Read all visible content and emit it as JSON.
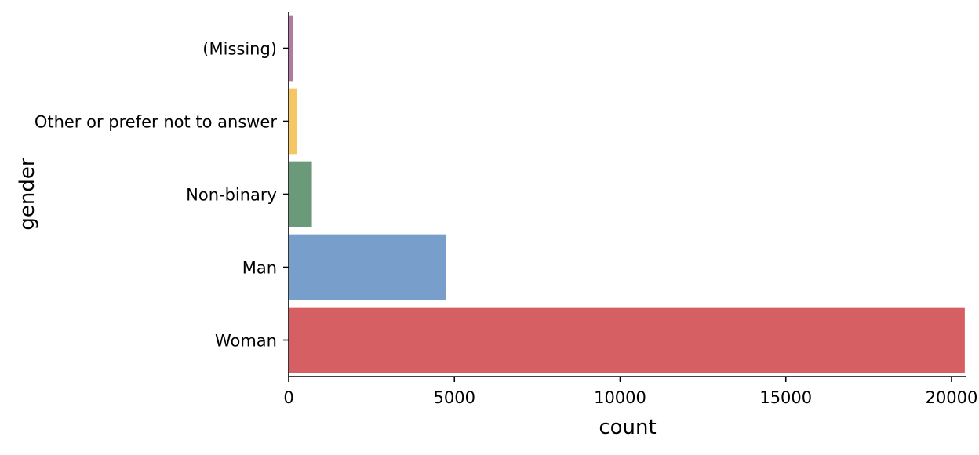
{
  "chart_data": {
    "type": "bar",
    "orientation": "horizontal",
    "categories": [
      "(Missing)",
      "Other or prefer not to answer",
      "Non-binary",
      "Man",
      "Woman"
    ],
    "values": [
      130,
      240,
      700,
      4750,
      20400
    ],
    "colors": [
      "#b07aa1",
      "#f5c662",
      "#6a9a7a",
      "#789ecb",
      "#d55f62"
    ],
    "xlabel": "count",
    "ylabel": "gender",
    "xlim": [
      0,
      20450
    ],
    "xticks": [
      0,
      5000,
      10000,
      15000,
      20000
    ],
    "xtick_labels": [
      "0",
      "5000",
      "10000",
      "15000",
      "20000"
    ],
    "grid": false,
    "legend": "none"
  }
}
